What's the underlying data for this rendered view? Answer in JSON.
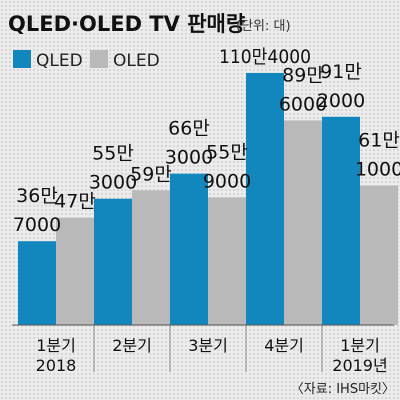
{
  "chart_data": {
    "type": "bar",
    "title": "QLED·OLED TV 판매량",
    "unit_note": "(단위: 대)",
    "categories": [
      "1분기\n2018",
      "2분기",
      "3분기",
      "4분기",
      "1분기\n2019년"
    ],
    "series": [
      {
        "name": "QLED",
        "color": "#1287bd",
        "values": [
          367000,
          553000,
          663000,
          1104000,
          912000
        ],
        "labels": [
          "36만\n7000",
          "55만\n3000",
          "66만\n3000",
          "110만4000",
          "91만\n2000"
        ]
      },
      {
        "name": "OLED",
        "color": "#b9b9b9",
        "values": [
          470000,
          590000,
          559000,
          896000,
          611000
        ],
        "labels": [
          "47만",
          "59만",
          "55만\n9000",
          "89만\n6000",
          "61만\n1000"
        ]
      }
    ],
    "ylim": [
      0,
      1130000
    ],
    "grid": false,
    "legend_position": "top-left",
    "source": "〈자료: IHS마킷〉"
  }
}
